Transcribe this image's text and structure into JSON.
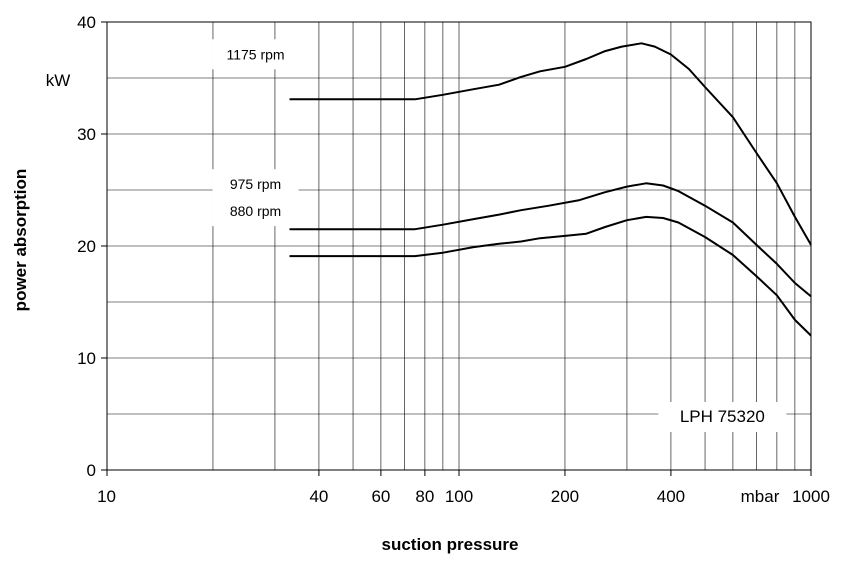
{
  "chart_data": {
    "type": "line",
    "title": "",
    "xlabel": "suction pressure",
    "ylabel": "power absorption",
    "x_scale": "log",
    "xlim": [
      10,
      1000
    ],
    "ylim": [
      0,
      40
    ],
    "grid": true,
    "x_tick_labels": [
      "10",
      "40",
      "60",
      "80",
      "100",
      "200",
      "400",
      "1000"
    ],
    "x_tick_values": [
      10,
      40,
      60,
      80,
      100,
      200,
      400,
      1000
    ],
    "x_unit_label": "mbar",
    "y_unit_label": "kW",
    "y_tick_values": [
      0,
      10,
      20,
      30,
      40
    ],
    "y_tick_labels": [
      "0",
      "10",
      "20",
      "30",
      "40"
    ],
    "annotation": "LPH 75320",
    "series": [
      {
        "name": "1175 rpm",
        "points": [
          [
            33,
            33.1
          ],
          [
            40,
            33.1
          ],
          [
            50,
            33.1
          ],
          [
            60,
            33.1
          ],
          [
            75,
            33.1
          ],
          [
            90,
            33.5
          ],
          [
            110,
            34
          ],
          [
            130,
            34.4
          ],
          [
            150,
            35.1
          ],
          [
            170,
            35.6
          ],
          [
            200,
            36
          ],
          [
            230,
            36.7
          ],
          [
            260,
            37.4
          ],
          [
            290,
            37.8
          ],
          [
            330,
            38.1
          ],
          [
            360,
            37.8
          ],
          [
            400,
            37.1
          ],
          [
            450,
            35.8
          ],
          [
            500,
            34.2
          ],
          [
            600,
            31.5
          ],
          [
            700,
            28.3
          ],
          [
            800,
            25.6
          ],
          [
            900,
            22.6
          ],
          [
            1000,
            20.1
          ]
        ]
      },
      {
        "name": "975 rpm",
        "points": [
          [
            33,
            21.5
          ],
          [
            40,
            21.5
          ],
          [
            50,
            21.5
          ],
          [
            60,
            21.5
          ],
          [
            75,
            21.5
          ],
          [
            90,
            21.9
          ],
          [
            110,
            22.4
          ],
          [
            130,
            22.8
          ],
          [
            150,
            23.2
          ],
          [
            180,
            23.6
          ],
          [
            220,
            24.1
          ],
          [
            260,
            24.8
          ],
          [
            300,
            25.3
          ],
          [
            340,
            25.6
          ],
          [
            380,
            25.4
          ],
          [
            420,
            24.9
          ],
          [
            500,
            23.6
          ],
          [
            600,
            22.1
          ],
          [
            700,
            20.1
          ],
          [
            800,
            18.4
          ],
          [
            900,
            16.7
          ],
          [
            1000,
            15.5
          ]
        ]
      },
      {
        "name": "880 rpm",
        "points": [
          [
            33,
            19.1
          ],
          [
            40,
            19.1
          ],
          [
            50,
            19.1
          ],
          [
            60,
            19.1
          ],
          [
            75,
            19.1
          ],
          [
            90,
            19.4
          ],
          [
            110,
            19.9
          ],
          [
            130,
            20.2
          ],
          [
            150,
            20.4
          ],
          [
            170,
            20.7
          ],
          [
            200,
            20.9
          ],
          [
            230,
            21.1
          ],
          [
            260,
            21.7
          ],
          [
            300,
            22.3
          ],
          [
            340,
            22.6
          ],
          [
            380,
            22.5
          ],
          [
            420,
            22.1
          ],
          [
            500,
            20.8
          ],
          [
            600,
            19.2
          ],
          [
            700,
            17.3
          ],
          [
            800,
            15.6
          ],
          [
            900,
            13.4
          ],
          [
            1000,
            12
          ]
        ]
      }
    ]
  }
}
